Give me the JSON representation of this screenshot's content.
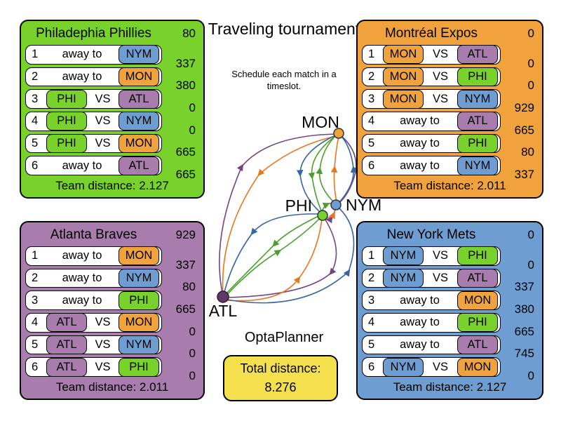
{
  "center": {
    "title": "Traveling tournament",
    "subtitle": "Schedule each match in a timeslot.",
    "brand": "OptaPlanner",
    "total_label": "Total distance:",
    "total_value": "8.276"
  },
  "labels": {
    "vs": "VS",
    "away": "away to",
    "team_distance": "Team distance:"
  },
  "team_colors": {
    "PHI": "#78d22b",
    "MON": "#f0a33c",
    "NYM": "#6e9ed1",
    "ATL": "#a87cad"
  },
  "graph": {
    "nodes": [
      {
        "id": "MON",
        "label": "MON",
        "color": "#f0a33c"
      },
      {
        "id": "PHI",
        "label": "PHI",
        "color": "#78d22b"
      },
      {
        "id": "NYM",
        "label": "NYM",
        "color": "#6e9ed1"
      },
      {
        "id": "ATL",
        "label": "ATL",
        "color": "#5f3a69"
      }
    ],
    "edge_colors": {
      "PHI": "#4a9e2d",
      "MON": "#e8761e",
      "NYM": "#3465a4",
      "ATL": "#744383"
    }
  },
  "panels": [
    {
      "team": "PHI",
      "title": "Philadephia Phillies",
      "rows": [
        {
          "slot": "1",
          "type": "away",
          "opponent": "NYM"
        },
        {
          "slot": "2",
          "type": "away",
          "opponent": "MON"
        },
        {
          "slot": "3",
          "type": "home",
          "home": "PHI",
          "opponent": "ATL"
        },
        {
          "slot": "4",
          "type": "home",
          "home": "PHI",
          "opponent": "NYM"
        },
        {
          "slot": "5",
          "type": "home",
          "home": "PHI",
          "opponent": "MON"
        },
        {
          "slot": "6",
          "type": "away",
          "opponent": "ATL"
        }
      ],
      "distances": [
        "80",
        "337",
        "380",
        "0",
        "0",
        "665",
        "665"
      ],
      "team_distance": "2.127"
    },
    {
      "team": "MON",
      "title": "Montréal Expos",
      "rows": [
        {
          "slot": "1",
          "type": "home",
          "home": "MON",
          "opponent": "ATL"
        },
        {
          "slot": "2",
          "type": "home",
          "home": "MON",
          "opponent": "PHI"
        },
        {
          "slot": "3",
          "type": "home",
          "home": "MON",
          "opponent": "NYM"
        },
        {
          "slot": "4",
          "type": "away",
          "opponent": "ATL"
        },
        {
          "slot": "5",
          "type": "away",
          "opponent": "PHI"
        },
        {
          "slot": "6",
          "type": "away",
          "opponent": "NYM"
        }
      ],
      "distances": [
        "0",
        "0",
        "0",
        "929",
        "665",
        "80",
        "337"
      ],
      "team_distance": "2.011"
    },
    {
      "team": "ATL",
      "title": "Atlanta Braves",
      "rows": [
        {
          "slot": "1",
          "type": "away",
          "opponent": "MON"
        },
        {
          "slot": "2",
          "type": "away",
          "opponent": "NYM"
        },
        {
          "slot": "3",
          "type": "away",
          "opponent": "PHI"
        },
        {
          "slot": "4",
          "type": "home",
          "home": "ATL",
          "opponent": "MON"
        },
        {
          "slot": "5",
          "type": "home",
          "home": "ATL",
          "opponent": "NYM"
        },
        {
          "slot": "6",
          "type": "home",
          "home": "ATL",
          "opponent": "PHI"
        }
      ],
      "distances": [
        "929",
        "337",
        "80",
        "665",
        "0",
        "0",
        "0"
      ],
      "team_distance": "2.011"
    },
    {
      "team": "NYM",
      "title": "New York Mets",
      "rows": [
        {
          "slot": "1",
          "type": "home",
          "home": "NYM",
          "opponent": "PHI"
        },
        {
          "slot": "2",
          "type": "home",
          "home": "NYM",
          "opponent": "ATL"
        },
        {
          "slot": "3",
          "type": "away",
          "opponent": "MON"
        },
        {
          "slot": "4",
          "type": "away",
          "opponent": "PHI"
        },
        {
          "slot": "5",
          "type": "away",
          "opponent": "ATL"
        },
        {
          "slot": "6",
          "type": "home",
          "home": "NYM",
          "opponent": "MON"
        }
      ],
      "distances": [
        "0",
        "0",
        "337",
        "380",
        "665",
        "745",
        "0"
      ],
      "team_distance": "2.127"
    }
  ]
}
